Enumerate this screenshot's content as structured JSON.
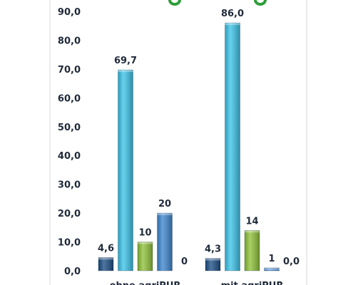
{
  "chart_data": {
    "type": "bar",
    "title": "",
    "xlabel": "",
    "ylabel": "",
    "ylim": [
      0,
      90
    ],
    "yticks": [
      "0,0",
      "10,0",
      "20,0",
      "30,0",
      "40,0",
      "50,0",
      "60,0",
      "70,0",
      "80,0",
      "90,0"
    ],
    "grid": false,
    "categories": [
      "ohne agriPUR",
      "mit agriPUR"
    ],
    "series": [
      {
        "color": "#1d4f86",
        "values": [
          4.6,
          4.3
        ],
        "labels": [
          "4,6",
          "4,3"
        ]
      },
      {
        "color": "#3cc3e8",
        "values": [
          69.7,
          86.0
        ],
        "labels": [
          "69,7",
          "86,0"
        ]
      },
      {
        "color": "#8fc23a",
        "values": [
          10,
          14
        ],
        "labels": [
          "10",
          "14"
        ]
      },
      {
        "color": "#3f86cf",
        "values": [
          20,
          1
        ],
        "labels": [
          "20",
          "1"
        ]
      },
      {
        "color": "#9ec7ea",
        "values": [
          0,
          0
        ],
        "labels": [
          "0",
          "0,0"
        ]
      }
    ]
  },
  "colors": {
    "frame": "#d9d9d9",
    "title_accent": "#2e9e3a",
    "text": "#1f2a3a"
  }
}
